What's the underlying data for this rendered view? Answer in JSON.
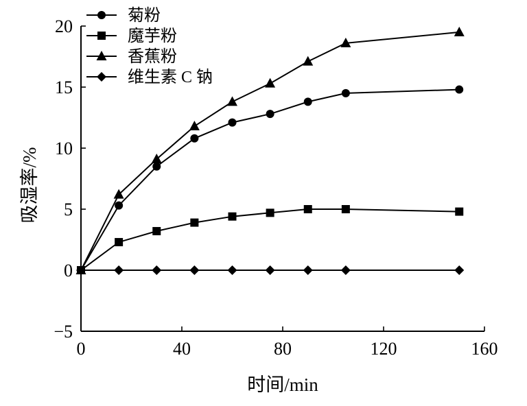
{
  "chart_data": {
    "type": "line",
    "xlabel": "时间/min",
    "ylabel": "吸湿率/%",
    "xlim": [
      0,
      160
    ],
    "ylim": [
      -5,
      20
    ],
    "x_ticks": [
      0,
      40,
      80,
      120,
      160
    ],
    "y_ticks": [
      -5,
      0,
      5,
      10,
      15,
      20
    ],
    "grid": false,
    "legend_position": "top-left",
    "series": [
      {
        "name": "菊粉",
        "marker": "circle",
        "x": [
          0,
          15,
          30,
          45,
          60,
          75,
          90,
          105,
          150
        ],
        "y": [
          0,
          5.3,
          8.5,
          10.8,
          12.1,
          12.8,
          13.8,
          14.5,
          14.8
        ]
      },
      {
        "name": "魔芋粉",
        "marker": "square",
        "x": [
          0,
          15,
          30,
          45,
          60,
          75,
          90,
          105,
          150
        ],
        "y": [
          0,
          2.3,
          3.2,
          3.9,
          4.4,
          4.7,
          5.0,
          5.0,
          4.8
        ]
      },
      {
        "name": "香蕉粉",
        "marker": "triangle",
        "x": [
          0,
          15,
          30,
          45,
          60,
          75,
          90,
          105,
          150
        ],
        "y": [
          0,
          6.2,
          9.1,
          11.8,
          13.8,
          15.3,
          17.1,
          18.6,
          19.5
        ]
      },
      {
        "name": "维生素 C 钠",
        "marker": "diamond",
        "x": [
          0,
          15,
          30,
          45,
          60,
          75,
          90,
          105,
          150
        ],
        "y": [
          0,
          0,
          0,
          0,
          0,
          0,
          0,
          0,
          0
        ]
      }
    ]
  }
}
